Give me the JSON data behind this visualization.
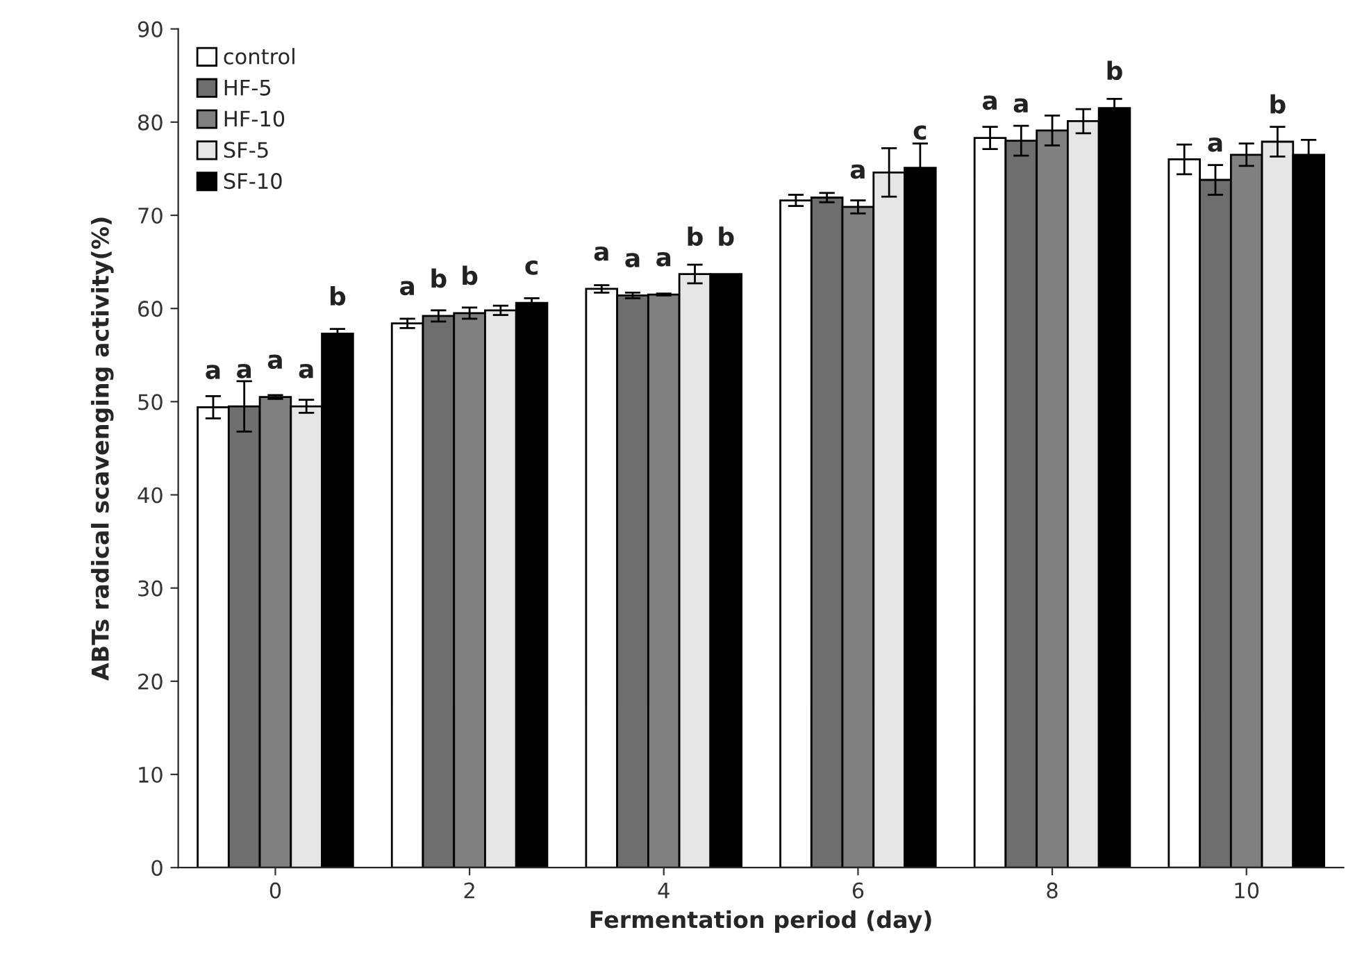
{
  "chart_data": {
    "type": "bar",
    "xlabel": "Fermentation period (day)",
    "ylabel": "ABTs radical scavenging activity(%)",
    "categories": [
      "0",
      "2",
      "4",
      "6",
      "8",
      "10"
    ],
    "ylim": [
      0,
      90
    ],
    "yticks": [
      0,
      10,
      20,
      30,
      40,
      50,
      60,
      70,
      80,
      90
    ],
    "grid": false,
    "legend": "top left",
    "series": [
      {
        "name": "control",
        "color": "#ffffff",
        "values": [
          49.4,
          58.4,
          62.1,
          71.6,
          78.3,
          76.0
        ],
        "errors": [
          1.2,
          0.5,
          0.4,
          0.6,
          1.2,
          1.6
        ],
        "value_labels": [
          "a",
          "a",
          "a",
          null,
          "a",
          null
        ]
      },
      {
        "name": "HF-5",
        "color": "#6e6e6e",
        "values": [
          49.5,
          59.2,
          61.4,
          71.9,
          78.0,
          73.8
        ],
        "errors": [
          2.7,
          0.6,
          0.3,
          0.5,
          1.6,
          1.6
        ],
        "value_labels": [
          "a",
          "b",
          "a",
          null,
          "a",
          "a"
        ]
      },
      {
        "name": "HF-10",
        "color": "#808080",
        "values": [
          50.5,
          59.5,
          61.5,
          70.9,
          79.1,
          76.5
        ],
        "errors": [
          0.2,
          0.6,
          0.1,
          0.7,
          1.6,
          1.2
        ],
        "value_labels": [
          "a",
          "b",
          "a",
          "a",
          null,
          null
        ]
      },
      {
        "name": "SF-5",
        "color": "#e6e6e6",
        "values": [
          49.5,
          59.8,
          63.7,
          74.6,
          80.1,
          77.9
        ],
        "errors": [
          0.7,
          0.5,
          1.0,
          2.6,
          1.3,
          1.6
        ],
        "value_labels": [
          "a",
          null,
          "b",
          null,
          null,
          "b"
        ]
      },
      {
        "name": "SF-10",
        "color": "#000000",
        "values": [
          57.3,
          60.6,
          63.7,
          75.1,
          81.5,
          76.5
        ],
        "errors": [
          0.5,
          0.5,
          null,
          2.6,
          1.0,
          1.6
        ],
        "value_labels": [
          "b",
          "c",
          "b",
          "c",
          "b",
          null
        ]
      }
    ]
  }
}
